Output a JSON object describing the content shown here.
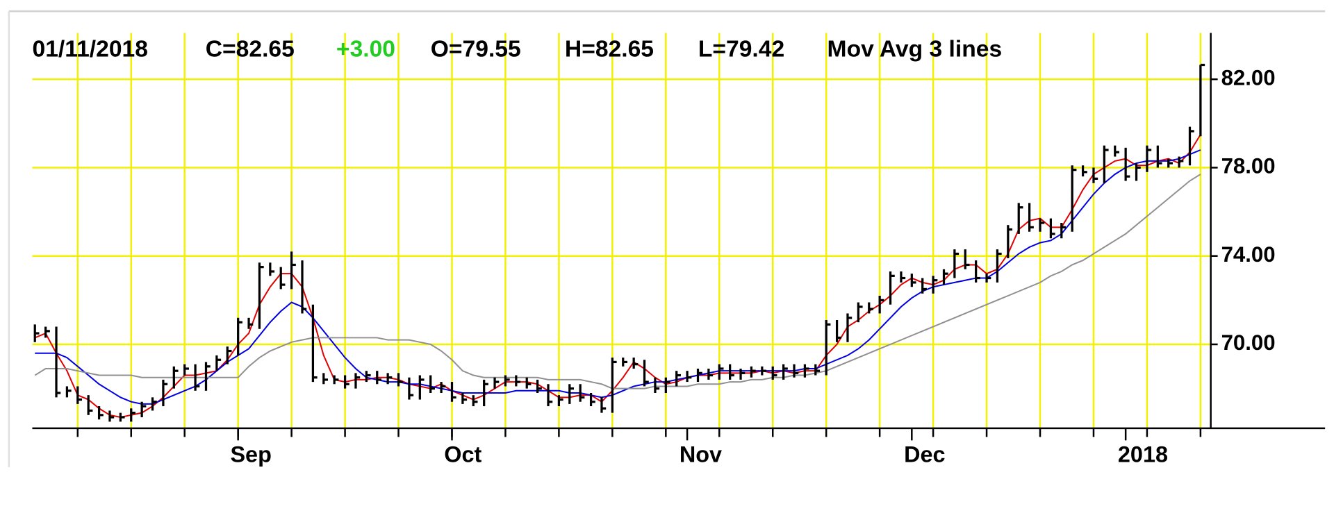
{
  "chart_data": {
    "type": "ohlc",
    "header": [
      "01/11/2018",
      "C=82.65",
      "+3.00",
      "O=79.55",
      "H=82.65",
      "L=79.42",
      "Mov Avg 3 lines"
    ],
    "categories": [
      null,
      null,
      null,
      null,
      null,
      null,
      null,
      null,
      null,
      null,
      null,
      null,
      null,
      null,
      null,
      null,
      null,
      null,
      null,
      "Sep",
      null,
      null,
      null,
      null,
      null,
      null,
      null,
      null,
      null,
      null,
      null,
      null,
      null,
      null,
      null,
      null,
      null,
      null,
      null,
      "Oct",
      null,
      null,
      null,
      null,
      null,
      null,
      null,
      null,
      null,
      null,
      null,
      null,
      null,
      null,
      null,
      null,
      null,
      null,
      null,
      null,
      null,
      "Nov",
      null,
      null,
      null,
      null,
      null,
      null,
      null,
      null,
      null,
      null,
      null,
      null,
      null,
      null,
      null,
      null,
      null,
      null,
      null,
      null,
      "Dec",
      null,
      null,
      null,
      null,
      null,
      null,
      null,
      null,
      null,
      null,
      null,
      null,
      null,
      null,
      null,
      null,
      null,
      null,
      null,
      "2018",
      null,
      null,
      null,
      null,
      null,
      null,
      null
    ],
    "high": [
      70.9,
      70.8,
      70.8,
      68.1,
      68.1,
      67.7,
      67.2,
      67.0,
      66.9,
      67.1,
      67.4,
      67.6,
      68.4,
      69.0,
      69.1,
      69.1,
      69.2,
      69.5,
      69.9,
      71.2,
      71.2,
      73.7,
      73.7,
      73.5,
      74.2,
      73.8,
      71.8,
      68.7,
      68.6,
      68.6,
      68.7,
      68.8,
      68.8,
      68.7,
      68.7,
      68.5,
      68.6,
      68.6,
      68.3,
      68.3,
      67.8,
      67.7,
      68.4,
      68.5,
      68.6,
      68.6,
      68.5,
      68.4,
      68.2,
      67.7,
      68.2,
      68.2,
      67.8,
      67.6,
      69.4,
      69.4,
      69.4,
      69.3,
      68.5,
      68.5,
      68.8,
      68.8,
      68.9,
      68.9,
      69.1,
      69.1,
      68.9,
      69.0,
      69.0,
      69.0,
      69.1,
      69.1,
      69.1,
      69.1,
      71.1,
      71.1,
      71.4,
      71.9,
      71.9,
      72.2,
      73.3,
      73.3,
      73.2,
      73.0,
      73.1,
      73.4,
      74.3,
      74.3,
      73.8,
      73.2,
      74.3,
      75.4,
      76.4,
      76.4,
      75.7,
      75.7,
      75.5,
      78.1,
      78.1,
      78.0,
      79.0,
      79.0,
      78.9,
      78.2,
      79.0,
      79.0,
      78.4,
      78.5,
      79.85,
      82.65
    ],
    "low": [
      70.1,
      70.3,
      67.6,
      67.6,
      67.3,
      66.8,
      66.6,
      66.5,
      66.5,
      66.5,
      66.7,
      67.0,
      67.2,
      68.0,
      68.6,
      67.9,
      67.9,
      68.8,
      69.1,
      69.5,
      70.7,
      70.7,
      73.1,
      72.5,
      72.5,
      71.4,
      68.3,
      68.2,
      68.2,
      68.0,
      68.0,
      68.3,
      68.2,
      68.2,
      68.1,
      67.5,
      67.5,
      67.8,
      67.8,
      67.4,
      67.3,
      67.2,
      67.2,
      68.0,
      68.1,
      68.1,
      68.0,
      67.8,
      67.2,
      67.2,
      67.3,
      67.4,
      67.2,
      66.9,
      66.9,
      69.0,
      68.9,
      68.1,
      67.8,
      67.8,
      68.1,
      68.3,
      68.3,
      68.4,
      68.4,
      68.4,
      68.4,
      68.5,
      68.6,
      68.4,
      68.4,
      68.5,
      68.5,
      68.6,
      68.6,
      70.1,
      70.1,
      71.0,
      71.4,
      71.4,
      71.8,
      72.8,
      72.6,
      72.3,
      72.3,
      72.7,
      73.0,
      73.4,
      72.8,
      72.8,
      72.8,
      73.9,
      75.0,
      75.1,
      75.1,
      74.8,
      74.8,
      75.1,
      77.6,
      77.3,
      77.3,
      78.5,
      77.4,
      77.4,
      77.8,
      78.0,
      78.0,
      78.0,
      78.1,
      79.42
    ],
    "close": [
      70.5,
      70.6,
      67.8,
      67.9,
      67.5,
      67.0,
      66.8,
      66.7,
      66.7,
      66.9,
      67.2,
      67.4,
      68.2,
      68.8,
      68.9,
      68.1,
      69.0,
      69.3,
      69.7,
      71.0,
      70.9,
      73.5,
      73.3,
      72.7,
      73.6,
      71.6,
      68.5,
      68.4,
      68.4,
      68.2,
      68.5,
      68.6,
      68.4,
      68.5,
      68.3,
      67.7,
      68.4,
      68.0,
      68.1,
      67.6,
      67.5,
      67.4,
      68.2,
      68.3,
      68.4,
      68.3,
      68.2,
      68.0,
      67.4,
      67.5,
      68.0,
      67.6,
      67.4,
      67.1,
      69.2,
      69.2,
      69.1,
      68.3,
      68.0,
      68.3,
      68.6,
      68.5,
      68.7,
      68.6,
      68.9,
      68.6,
      68.7,
      68.8,
      68.8,
      68.6,
      68.9,
      68.7,
      68.9,
      68.8,
      70.9,
      70.3,
      71.2,
      71.7,
      71.6,
      72.0,
      73.1,
      73.0,
      72.8,
      72.5,
      72.9,
      73.2,
      74.1,
      73.6,
      73.0,
      73.0,
      74.1,
      75.2,
      76.2,
      75.3,
      75.5,
      75.0,
      75.3,
      77.9,
      77.8,
      77.5,
      78.8,
      78.7,
      77.6,
      78.0,
      78.8,
      78.2,
      78.2,
      78.3,
      79.65,
      82.65
    ],
    "bar_color": "#000000",
    "series": [
      {
        "color": "#e00000",
        "values": [
          70.3,
          70.5,
          69.6,
          68.8,
          67.7,
          67.5,
          67.1,
          66.8,
          66.7,
          66.8,
          66.9,
          67.2,
          67.6,
          68.1,
          68.6,
          68.6,
          68.7,
          68.8,
          69.3,
          70.0,
          70.5,
          71.8,
          72.6,
          73.2,
          73.2,
          72.6,
          71.2,
          69.5,
          68.4,
          68.3,
          68.4,
          68.4,
          68.5,
          68.5,
          68.4,
          68.2,
          68.1,
          68.0,
          68.2,
          67.9,
          67.7,
          67.5,
          67.7,
          68.0,
          68.3,
          68.3,
          68.3,
          68.2,
          67.9,
          67.6,
          67.6,
          67.7,
          67.7,
          67.4,
          67.9,
          68.5,
          69.2,
          68.9,
          68.5,
          68.2,
          68.3,
          68.5,
          68.6,
          68.6,
          68.7,
          68.7,
          68.7,
          68.7,
          68.8,
          68.7,
          68.8,
          68.7,
          68.8,
          68.8,
          69.5,
          70.0,
          70.8,
          71.1,
          71.5,
          71.8,
          72.2,
          72.7,
          73.0,
          72.8,
          72.7,
          72.9,
          73.4,
          73.6,
          73.6,
          73.2,
          73.4,
          74.1,
          75.2,
          75.6,
          75.7,
          75.3,
          75.3,
          76.1,
          77.0,
          77.7,
          78.0,
          78.3,
          78.4,
          78.1,
          78.1,
          78.3,
          78.4,
          78.2,
          78.7,
          79.5
        ]
      },
      {
        "color": "#0000e0",
        "values": [
          69.6,
          69.6,
          69.6,
          69.4,
          69.0,
          68.6,
          68.2,
          67.9,
          67.6,
          67.4,
          67.3,
          67.3,
          67.5,
          67.7,
          67.9,
          68.1,
          68.4,
          68.8,
          69.2,
          69.5,
          69.8,
          70.4,
          71.0,
          71.5,
          71.9,
          71.7,
          71.2,
          70.6,
          70.0,
          69.4,
          68.9,
          68.5,
          68.4,
          68.3,
          68.3,
          68.2,
          68.2,
          68.1,
          68.0,
          67.9,
          67.8,
          67.8,
          67.8,
          67.8,
          67.8,
          67.9,
          67.9,
          67.9,
          67.9,
          67.9,
          67.8,
          67.8,
          67.7,
          67.6,
          67.7,
          67.9,
          68.1,
          68.2,
          68.3,
          68.3,
          68.4,
          68.5,
          68.6,
          68.7,
          68.8,
          68.8,
          68.8,
          68.8,
          68.8,
          68.8,
          68.8,
          68.8,
          68.9,
          68.9,
          69.1,
          69.3,
          69.5,
          69.8,
          70.2,
          70.7,
          71.2,
          71.7,
          72.1,
          72.4,
          72.6,
          72.7,
          72.8,
          72.9,
          73.0,
          73.0,
          73.3,
          73.7,
          74.1,
          74.4,
          74.6,
          74.7,
          75.0,
          75.6,
          76.2,
          76.8,
          77.3,
          77.7,
          78.0,
          78.2,
          78.3,
          78.3,
          78.3,
          78.4,
          78.6,
          78.8
        ]
      },
      {
        "color": "#909090",
        "values": [
          68.6,
          68.9,
          68.9,
          68.9,
          68.8,
          68.7,
          68.6,
          68.6,
          68.6,
          68.6,
          68.5,
          68.5,
          68.5,
          68.5,
          68.5,
          68.5,
          68.5,
          68.5,
          68.5,
          68.5,
          69.0,
          69.4,
          69.7,
          69.9,
          70.1,
          70.2,
          70.3,
          70.3,
          70.3,
          70.3,
          70.3,
          70.3,
          70.3,
          70.2,
          70.2,
          70.2,
          70.1,
          70.0,
          69.7,
          69.3,
          68.8,
          68.6,
          68.5,
          68.5,
          68.5,
          68.5,
          68.5,
          68.5,
          68.4,
          68.4,
          68.4,
          68.4,
          68.3,
          68.2,
          68.0,
          68.0,
          68.0,
          68.0,
          68.1,
          68.1,
          68.1,
          68.1,
          68.2,
          68.2,
          68.2,
          68.3,
          68.3,
          68.4,
          68.4,
          68.5,
          68.5,
          68.6,
          68.6,
          68.7,
          68.8,
          69.0,
          69.2,
          69.4,
          69.6,
          69.8,
          70.0,
          70.2,
          70.4,
          70.6,
          70.8,
          71.0,
          71.2,
          71.4,
          71.6,
          71.8,
          72.0,
          72.2,
          72.4,
          72.6,
          72.8,
          73.1,
          73.3,
          73.6,
          73.8,
          74.1,
          74.4,
          74.7,
          75.0,
          75.4,
          75.8,
          76.2,
          76.6,
          77.0,
          77.4,
          77.7
        ]
      }
    ],
    "ylim": [
      66.2,
      84.1
    ],
    "yticks": [
      {
        "value": 70,
        "label": "70.00"
      },
      {
        "value": 74,
        "label": "74.00"
      },
      {
        "value": 78,
        "label": "78.00"
      },
      {
        "value": 82,
        "label": "82.00"
      }
    ],
    "grid": true,
    "grid_color": "#f2f200"
  }
}
